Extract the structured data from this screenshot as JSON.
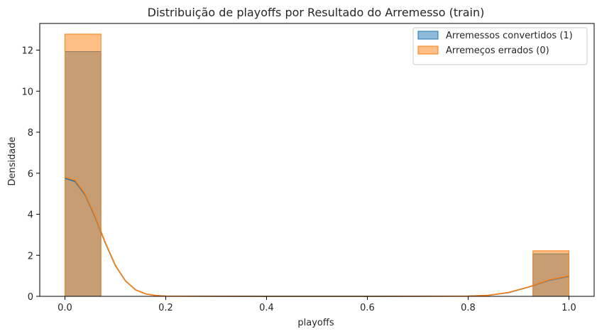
{
  "chart_data": {
    "type": "histogram",
    "title": "Distribuição de playoffs por Resultado do Arremesso (train)",
    "xlabel": "playoffs",
    "ylabel": "Densidade",
    "xlim": [
      -0.05,
      1.05
    ],
    "ylim": [
      0,
      13.3
    ],
    "xticks": [
      "0.0",
      "0.2",
      "0.4",
      "0.6",
      "0.8",
      "1.0"
    ],
    "yticks": [
      "0",
      "2",
      "4",
      "6",
      "8",
      "10",
      "12"
    ],
    "grid": false,
    "legend_position": "top-right",
    "bins": [
      [
        0.0,
        0.0714
      ],
      [
        0.9286,
        1.0
      ]
    ],
    "series": [
      {
        "name": "Arremessos convertidos (1)",
        "color": "#1f77b4",
        "bin_densities": [
          11.93,
          2.07
        ],
        "kde": [
          {
            "x": 0.0,
            "y": 5.75
          },
          {
            "x": 0.02,
            "y": 5.6
          },
          {
            "x": 0.04,
            "y": 4.95
          },
          {
            "x": 0.06,
            "y": 3.85
          },
          {
            "x": 0.08,
            "y": 2.6
          },
          {
            "x": 0.1,
            "y": 1.5
          },
          {
            "x": 0.12,
            "y": 0.75
          },
          {
            "x": 0.14,
            "y": 0.32
          },
          {
            "x": 0.16,
            "y": 0.12
          },
          {
            "x": 0.18,
            "y": 0.04
          },
          {
            "x": 0.2,
            "y": 0.01
          },
          {
            "x": 0.4,
            "y": 0.0
          },
          {
            "x": 0.6,
            "y": 0.0
          },
          {
            "x": 0.8,
            "y": 0.01
          },
          {
            "x": 0.84,
            "y": 0.05
          },
          {
            "x": 0.88,
            "y": 0.18
          },
          {
            "x": 0.92,
            "y": 0.45
          },
          {
            "x": 0.96,
            "y": 0.78
          },
          {
            "x": 1.0,
            "y": 0.98
          }
        ]
      },
      {
        "name": "Arremeços errados (0)",
        "color": "#ff7f0e",
        "bin_densities": [
          12.78,
          2.22
        ],
        "kde": [
          {
            "x": 0.0,
            "y": 5.82
          },
          {
            "x": 0.02,
            "y": 5.66
          },
          {
            "x": 0.04,
            "y": 5.0
          },
          {
            "x": 0.06,
            "y": 3.9
          },
          {
            "x": 0.08,
            "y": 2.63
          },
          {
            "x": 0.1,
            "y": 1.52
          },
          {
            "x": 0.12,
            "y": 0.76
          },
          {
            "x": 0.14,
            "y": 0.32
          },
          {
            "x": 0.16,
            "y": 0.12
          },
          {
            "x": 0.18,
            "y": 0.04
          },
          {
            "x": 0.2,
            "y": 0.01
          },
          {
            "x": 0.4,
            "y": 0.0
          },
          {
            "x": 0.6,
            "y": 0.0
          },
          {
            "x": 0.8,
            "y": 0.01
          },
          {
            "x": 0.84,
            "y": 0.05
          },
          {
            "x": 0.88,
            "y": 0.19
          },
          {
            "x": 0.92,
            "y": 0.46
          },
          {
            "x": 0.96,
            "y": 0.8
          },
          {
            "x": 1.0,
            "y": 1.0
          }
        ]
      }
    ]
  }
}
